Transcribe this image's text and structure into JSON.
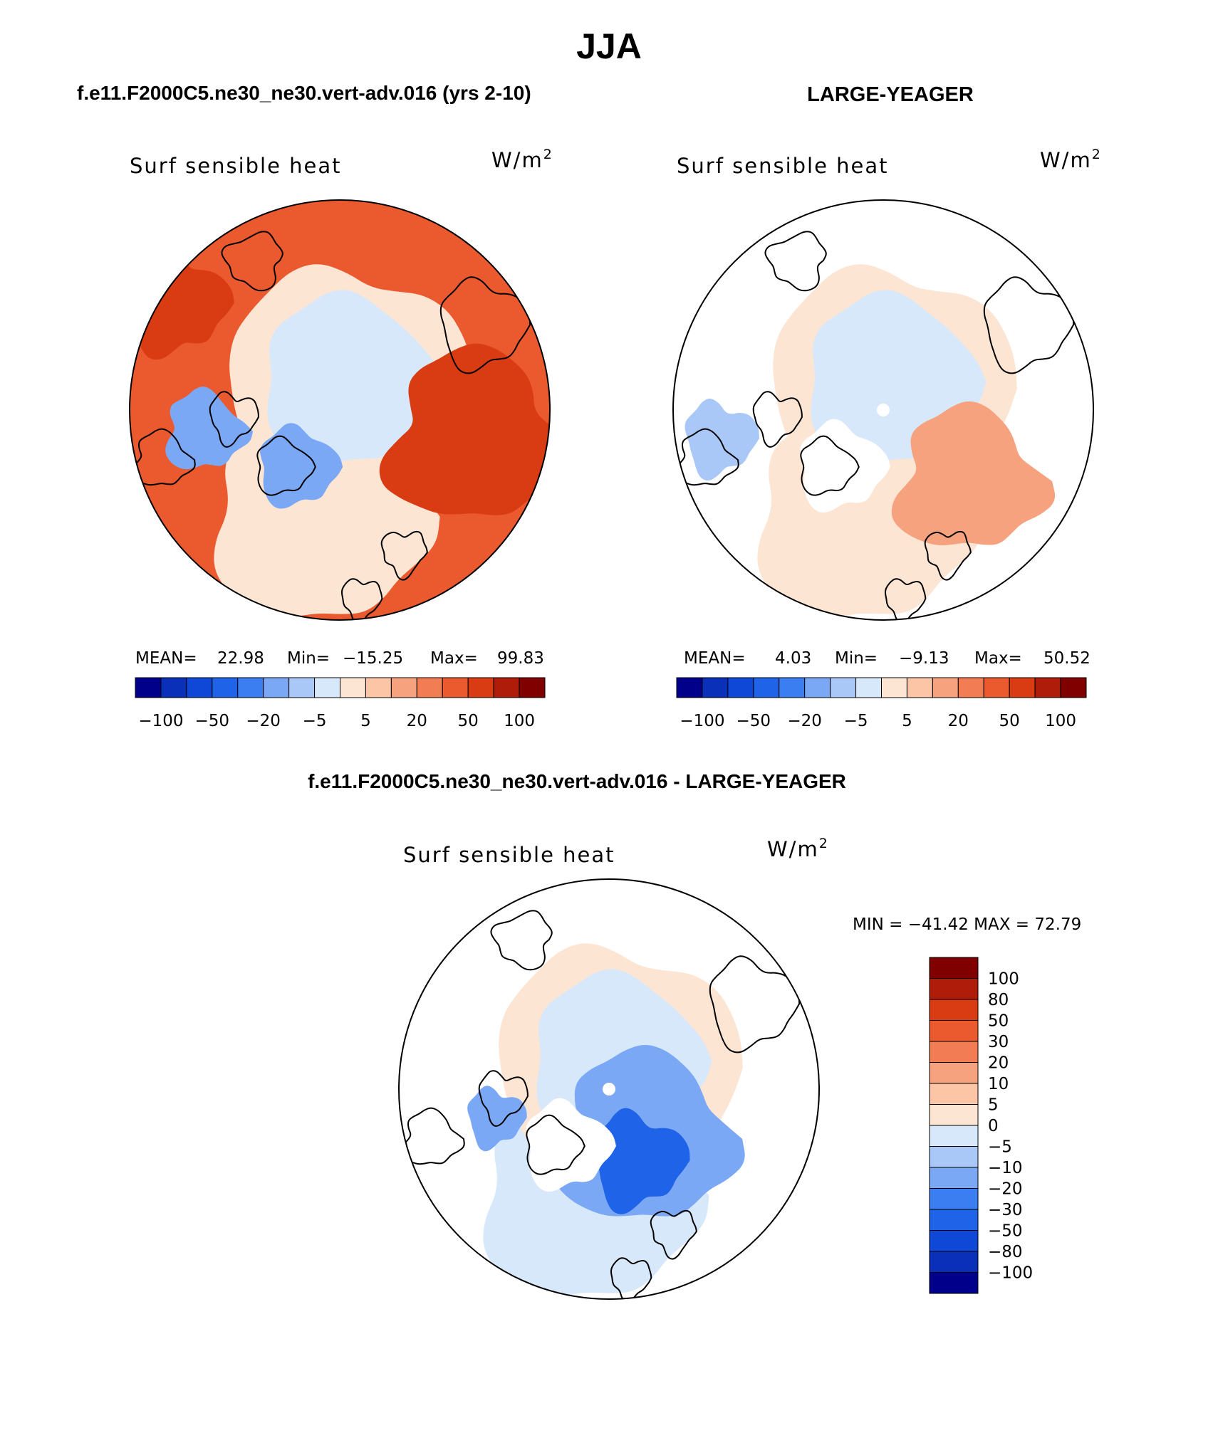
{
  "figure": {
    "title": "JJA",
    "colors": {
      "scale": [
        "#00008b",
        "#0a2fb8",
        "#0f47d6",
        "#1f63e8",
        "#3b7ef2",
        "#7aa8f5",
        "#a9c8f7",
        "#d7e8fa",
        "#fde5d4",
        "#fbc5a6",
        "#f7a27e",
        "#f27d55",
        "#ea5a2e",
        "#d93b12",
        "#b01c0a",
        "#800000"
      ],
      "land": "#ffffff",
      "coast": "#000000"
    },
    "icons": [
      "polar-map-icon"
    ]
  },
  "chart_data": [
    {
      "type": "heatmap",
      "projection": "north-polar-stereographic",
      "header": "f.e11.F2000C5.ne30_ne30.vert-adv.016 (yrs 2-10)",
      "title": "Surf sensible heat",
      "units": "W/m",
      "units_sup": "2",
      "stats_label_mean": "MEAN=",
      "mean": 22.98,
      "stats_label_min": "Min=",
      "min": "−15.25",
      "stats_label_max": "Max=",
      "max": 99.83,
      "levels": [
        -100,
        -80,
        -50,
        -30,
        -20,
        -10,
        -5,
        0,
        5,
        10,
        20,
        30,
        50,
        80,
        100
      ],
      "colorbar_tick_labels": [
        "−100",
        "−50",
        "−20",
        "−5",
        "5",
        "20",
        "50",
        "100"
      ],
      "field_pattern": "warm"
    },
    {
      "type": "heatmap",
      "projection": "north-polar-stereographic",
      "header": "LARGE-YEAGER",
      "title": "Surf sensible heat",
      "units": "W/m",
      "units_sup": "2",
      "stats_label_mean": "MEAN=",
      "mean": 4.03,
      "stats_label_min": "Min=",
      "min": "−9.13",
      "stats_label_max": "Max=",
      "max": 50.52,
      "levels": [
        -100,
        -80,
        -50,
        -30,
        -20,
        -10,
        -5,
        0,
        5,
        10,
        20,
        30,
        50,
        80,
        100
      ],
      "colorbar_tick_labels": [
        "−100",
        "−50",
        "−20",
        "−5",
        "5",
        "20",
        "50",
        "100"
      ],
      "field_pattern": "mild"
    },
    {
      "type": "heatmap",
      "projection": "north-polar-stereographic",
      "header": "f.e11.F2000C5.ne30_ne30.vert-adv.016 - LARGE-YEAGER",
      "title": "Surf sensible heat",
      "units": "W/m",
      "units_sup": "2",
      "minmax_label": "MIN = −41.42 MAX =  72.79",
      "min": -41.42,
      "max": 72.79,
      "levels": [
        -100,
        -80,
        -50,
        -30,
        -20,
        -10,
        -5,
        0,
        5,
        10,
        20,
        30,
        50,
        80,
        100
      ],
      "colorbar_tick_labels": [
        "100",
        "80",
        "50",
        "30",
        "20",
        "10",
        "5",
        "0",
        "−5",
        "−10",
        "−20",
        "−30",
        "−50",
        "−80",
        "−100"
      ],
      "field_pattern": "difference"
    }
  ]
}
